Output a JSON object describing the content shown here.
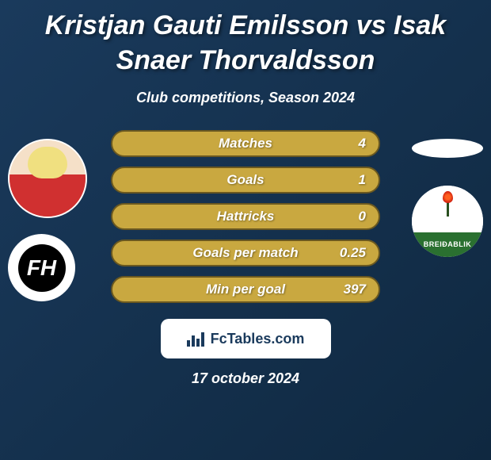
{
  "title": "Kristjan Gauti Emilsson vs Isak Snaer Thorvaldsson",
  "subtitle": "Club competitions, Season 2024",
  "stats": [
    {
      "label": "Matches",
      "value_right": "4"
    },
    {
      "label": "Goals",
      "value_right": "1"
    },
    {
      "label": "Hattricks",
      "value_right": "0"
    },
    {
      "label": "Goals per match",
      "value_right": "0.25"
    },
    {
      "label": "Min per goal",
      "value_right": "397"
    }
  ],
  "footer_brand": "FcTables.com",
  "date": "17 october 2024",
  "club1_label": "FH",
  "club2_label": "BREIÐABLIK",
  "styling": {
    "background_gradient": [
      "#1a3a5c",
      "#0f2840"
    ],
    "title_fontsize": 34,
    "title_color": "#ffffff",
    "subtitle_fontsize": 18,
    "stat_bar_bg": "#c9a840",
    "stat_bar_border": "#6a5820",
    "stat_bar_height": 34,
    "stat_bar_radius": 17,
    "stat_font_color": "#ffffff",
    "stat_fontsize": 17,
    "footer_badge_bg": "#ffffff",
    "footer_text_color": "#1a3a5c",
    "date_fontsize": 18,
    "player_photo_diameter": 100,
    "club_logo_diameter": 90,
    "club2_green": "#2a7030",
    "club2_flame": "#ff6020"
  }
}
